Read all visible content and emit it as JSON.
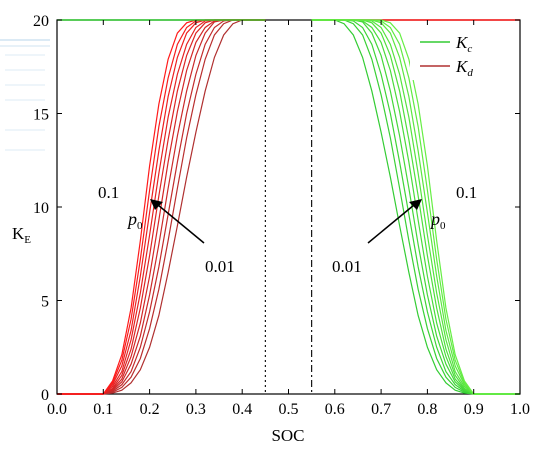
{
  "chart_data": {
    "type": "line",
    "xlabel": "SOC",
    "ylabel_main": "K",
    "ylabel_sub": "E",
    "xlim": [
      0.0,
      1.0
    ],
    "ylim": [
      0,
      20
    ],
    "xticks": [
      "0.0",
      "0.1",
      "0.2",
      "0.3",
      "0.4",
      "0.5",
      "0.6",
      "0.7",
      "0.8",
      "0.9",
      "1.0"
    ],
    "yticks": [
      "0",
      "5",
      "10",
      "15",
      "20"
    ],
    "grid": false,
    "legend": {
      "placement": "top-right",
      "entries": [
        {
          "main": "K",
          "sub": "c",
          "color": "#33cc33"
        },
        {
          "main": "K",
          "sub": "d",
          "color": "#b03030"
        }
      ]
    },
    "vlines": [
      {
        "x": 0.45,
        "style": "dotted"
      },
      {
        "x": 0.55,
        "style": "dashdot"
      }
    ],
    "kmax": 20,
    "series_d": {
      "color_start": "#b03030",
      "color_end": "#ff1a1a",
      "curves": [
        {
          "x": [
            0.1,
            0.12,
            0.14,
            0.16,
            0.18,
            0.2,
            0.22,
            0.24,
            0.26,
            0.28,
            0.3,
            0.32,
            0.34,
            0.36,
            0.38,
            0.4
          ],
          "y": [
            0,
            0.05,
            0.2,
            0.6,
            1.3,
            2.5,
            4.2,
            6.5,
            9.0,
            11.6,
            14.0,
            16.2,
            18.0,
            19.2,
            19.8,
            20
          ]
        },
        {
          "x": [
            0.1,
            0.12,
            0.14,
            0.16,
            0.18,
            0.2,
            0.22,
            0.24,
            0.26,
            0.28,
            0.3,
            0.32,
            0.34,
            0.36,
            0.38
          ],
          "y": [
            0,
            0.1,
            0.35,
            0.9,
            1.9,
            3.5,
            5.6,
            8.2,
            11.0,
            13.7,
            16.0,
            17.9,
            19.2,
            19.8,
            20
          ]
        },
        {
          "x": [
            0.1,
            0.12,
            0.14,
            0.16,
            0.18,
            0.2,
            0.22,
            0.24,
            0.26,
            0.28,
            0.3,
            0.32,
            0.34,
            0.36,
            0.38
          ],
          "y": [
            0,
            0.15,
            0.5,
            1.2,
            2.5,
            4.4,
            6.8,
            9.6,
            12.4,
            15.0,
            17.1,
            18.7,
            19.6,
            19.95,
            20
          ]
        },
        {
          "x": [
            0.1,
            0.12,
            0.14,
            0.16,
            0.18,
            0.2,
            0.22,
            0.24,
            0.26,
            0.28,
            0.3,
            0.32,
            0.34,
            0.36
          ],
          "y": [
            0,
            0.2,
            0.65,
            1.6,
            3.1,
            5.3,
            8.0,
            11.0,
            13.8,
            16.2,
            18.1,
            19.3,
            19.9,
            20
          ]
        },
        {
          "x": [
            0.1,
            0.12,
            0.14,
            0.16,
            0.18,
            0.2,
            0.22,
            0.24,
            0.26,
            0.28,
            0.3,
            0.32,
            0.34,
            0.36
          ],
          "y": [
            0,
            0.25,
            0.8,
            2.0,
            3.8,
            6.3,
            9.3,
            12.4,
            15.1,
            17.3,
            18.8,
            19.6,
            19.95,
            20
          ]
        },
        {
          "x": [
            0.1,
            0.12,
            0.14,
            0.16,
            0.18,
            0.2,
            0.22,
            0.24,
            0.26,
            0.28,
            0.3,
            0.32,
            0.34
          ],
          "y": [
            0,
            0.3,
            1.0,
            2.4,
            4.6,
            7.4,
            10.6,
            13.6,
            16.2,
            18.1,
            19.3,
            19.85,
            20
          ]
        },
        {
          "x": [
            0.1,
            0.12,
            0.14,
            0.16,
            0.18,
            0.2,
            0.22,
            0.24,
            0.26,
            0.28,
            0.3,
            0.32,
            0.34
          ],
          "y": [
            0,
            0.4,
            1.2,
            2.9,
            5.4,
            8.5,
            11.8,
            14.8,
            17.1,
            18.7,
            19.6,
            19.95,
            20
          ]
        },
        {
          "x": [
            0.1,
            0.12,
            0.14,
            0.16,
            0.18,
            0.2,
            0.22,
            0.24,
            0.26,
            0.28,
            0.3,
            0.32,
            0.34
          ],
          "y": [
            0,
            0.5,
            1.5,
            3.4,
            6.3,
            9.7,
            13.0,
            15.9,
            18.0,
            19.3,
            19.85,
            20,
            20
          ]
        },
        {
          "x": [
            0.1,
            0.12,
            0.14,
            0.16,
            0.18,
            0.2,
            0.22,
            0.24,
            0.26,
            0.28,
            0.3,
            0.32
          ],
          "y": [
            0,
            0.6,
            1.8,
            4.0,
            7.2,
            10.9,
            14.3,
            16.9,
            18.7,
            19.6,
            19.95,
            20
          ]
        },
        {
          "x": [
            0.1,
            0.12,
            0.14,
            0.16,
            0.18,
            0.2,
            0.22,
            0.24,
            0.26,
            0.28,
            0.3,
            0.32
          ],
          "y": [
            0,
            0.7,
            2.1,
            4.6,
            8.2,
            12.2,
            15.5,
            17.9,
            19.3,
            19.85,
            20,
            20
          ]
        }
      ]
    },
    "series_c": {
      "color_start": "#33cc33",
      "color_end": "#66ee44",
      "curves": [
        {
          "x": [
            0.6,
            0.62,
            0.64,
            0.66,
            0.68,
            0.7,
            0.72,
            0.74,
            0.76,
            0.78,
            0.8,
            0.82,
            0.84,
            0.86,
            0.88,
            0.9
          ],
          "y": [
            20,
            19.8,
            19.2,
            18.0,
            16.2,
            14.0,
            11.6,
            9.0,
            6.5,
            4.2,
            2.5,
            1.3,
            0.6,
            0.2,
            0.05,
            0
          ]
        },
        {
          "x": [
            0.62,
            0.64,
            0.66,
            0.68,
            0.7,
            0.72,
            0.74,
            0.76,
            0.78,
            0.8,
            0.82,
            0.84,
            0.86,
            0.88,
            0.9
          ],
          "y": [
            20,
            19.8,
            19.2,
            17.9,
            16.0,
            13.7,
            11.0,
            8.2,
            5.6,
            3.5,
            1.9,
            0.9,
            0.35,
            0.1,
            0
          ]
        },
        {
          "x": [
            0.62,
            0.64,
            0.66,
            0.68,
            0.7,
            0.72,
            0.74,
            0.76,
            0.78,
            0.8,
            0.82,
            0.84,
            0.86,
            0.88,
            0.9
          ],
          "y": [
            20,
            19.95,
            19.6,
            18.7,
            17.1,
            15.0,
            12.4,
            9.6,
            6.8,
            4.4,
            2.5,
            1.2,
            0.5,
            0.15,
            0
          ]
        },
        {
          "x": [
            0.64,
            0.66,
            0.68,
            0.7,
            0.72,
            0.74,
            0.76,
            0.78,
            0.8,
            0.82,
            0.84,
            0.86,
            0.88,
            0.9
          ],
          "y": [
            20,
            19.9,
            19.3,
            18.1,
            16.2,
            13.8,
            11.0,
            8.0,
            5.3,
            3.1,
            1.6,
            0.65,
            0.2,
            0
          ]
        },
        {
          "x": [
            0.64,
            0.66,
            0.68,
            0.7,
            0.72,
            0.74,
            0.76,
            0.78,
            0.8,
            0.82,
            0.84,
            0.86,
            0.88,
            0.9
          ],
          "y": [
            20,
            19.95,
            19.6,
            18.8,
            17.3,
            15.1,
            12.4,
            9.3,
            6.3,
            3.8,
            2.0,
            0.8,
            0.25,
            0
          ]
        },
        {
          "x": [
            0.66,
            0.68,
            0.7,
            0.72,
            0.74,
            0.76,
            0.78,
            0.8,
            0.82,
            0.84,
            0.86,
            0.88,
            0.9
          ],
          "y": [
            20,
            19.85,
            19.3,
            18.1,
            16.2,
            13.6,
            10.6,
            7.4,
            4.6,
            2.4,
            1.0,
            0.3,
            0
          ]
        },
        {
          "x": [
            0.66,
            0.68,
            0.7,
            0.72,
            0.74,
            0.76,
            0.78,
            0.8,
            0.82,
            0.84,
            0.86,
            0.88,
            0.9
          ],
          "y": [
            20,
            19.95,
            19.6,
            18.7,
            17.1,
            14.8,
            11.8,
            8.5,
            5.4,
            2.9,
            1.2,
            0.4,
            0
          ]
        },
        {
          "x": [
            0.66,
            0.68,
            0.7,
            0.72,
            0.74,
            0.76,
            0.78,
            0.8,
            0.82,
            0.84,
            0.86,
            0.88,
            0.9
          ],
          "y": [
            20,
            20,
            19.85,
            19.3,
            18.0,
            15.9,
            13.0,
            9.7,
            6.3,
            3.4,
            1.5,
            0.5,
            0
          ]
        },
        {
          "x": [
            0.68,
            0.7,
            0.72,
            0.74,
            0.76,
            0.78,
            0.8,
            0.82,
            0.84,
            0.86,
            0.88,
            0.9
          ],
          "y": [
            20,
            19.95,
            19.6,
            18.7,
            16.9,
            14.3,
            10.9,
            7.2,
            4.0,
            1.8,
            0.6,
            0
          ]
        },
        {
          "x": [
            0.68,
            0.7,
            0.72,
            0.74,
            0.76,
            0.78,
            0.8,
            0.82,
            0.84,
            0.86,
            0.88,
            0.9
          ],
          "y": [
            20,
            20,
            19.85,
            19.3,
            17.9,
            15.5,
            12.2,
            8.2,
            4.6,
            2.1,
            0.7,
            0
          ]
        }
      ]
    },
    "annotations": {
      "left_top": "0.1",
      "left_bottom": "0.01",
      "left_param": "p",
      "left_param_sub": "0",
      "right_top": "0.1",
      "right_bottom": "0.01",
      "right_param": "p",
      "right_param_sub": "0"
    }
  }
}
